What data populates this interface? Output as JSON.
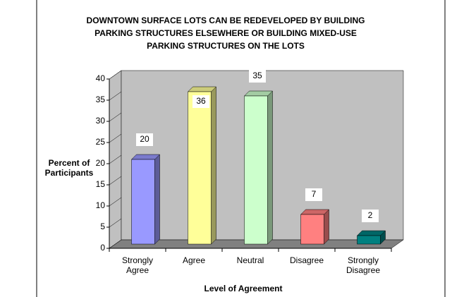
{
  "chart_data": {
    "type": "bar3d",
    "title": [
      "DOWNTOWN SURFACE LOTS CAN BE REDEVELOPED BY BUILDING",
      "PARKING STRUCTURES ELSEWHERE OR BUILDING MIXED-USE",
      "PARKING STRUCTURES ON THE LOTS"
    ],
    "y_label": "Percent of Participants",
    "x_label": "Level of Agreement",
    "categories": [
      "Strongly Agree",
      "Agree",
      "Neutral",
      "Disagree",
      "Strongly Disagree"
    ],
    "values": [
      20,
      36,
      35,
      7,
      2
    ],
    "colors": [
      "#9999ff",
      "#ffff99",
      "#ccffcc",
      "#ff8080",
      "#008080"
    ],
    "ylim": [
      0,
      40
    ],
    "yticks": [
      0,
      5,
      10,
      15,
      20,
      25,
      30,
      35,
      40
    ],
    "grid": false
  }
}
